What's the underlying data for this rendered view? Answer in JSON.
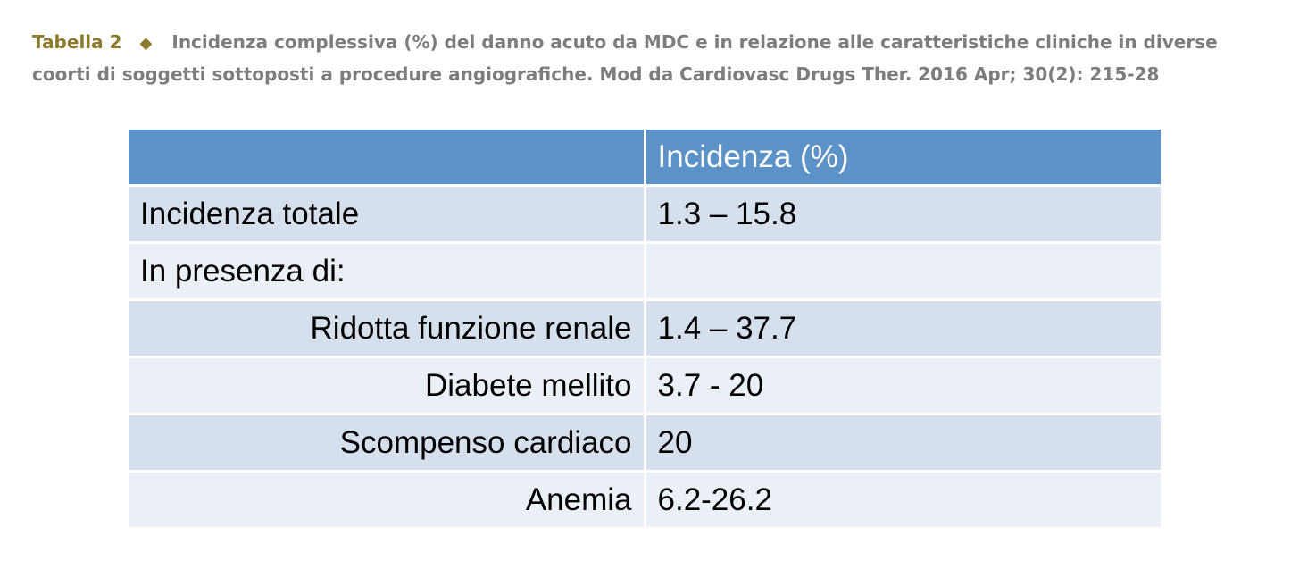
{
  "caption": {
    "label": "Tabella 2",
    "text": "Incidenza complessiva (%) del danno acuto da MDC e in relazione alle caratteristiche cliniche in diverse coorti di soggetti sottoposti a procedure angiografiche. Mod da Cardiovasc Drugs Ther. 2016 Apr; 30(2): 215-28",
    "accent_color": "#8c7a2e",
    "text_color": "#7d7d7d"
  },
  "table": {
    "header": [
      "",
      "Incidenza (%)"
    ],
    "header_color": "#5b92c8",
    "row_colors": [
      "#d6dfec",
      "#ebeff6"
    ],
    "rows": [
      {
        "label": "Incidenza totale",
        "value": "1.3 – 15.8",
        "align": "left"
      },
      {
        "label": "In presenza di:",
        "value": "",
        "align": "left"
      },
      {
        "label": "Ridotta funzione renale",
        "value": "1.4 – 37.7",
        "align": "right"
      },
      {
        "label": "Diabete mellito",
        "value": "3.7 - 20",
        "align": "right"
      },
      {
        "label": "Scompenso cardiaco",
        "value": "20",
        "align": "right"
      },
      {
        "label": "Anemia",
        "value": "6.2-26.2",
        "align": "right"
      }
    ]
  }
}
